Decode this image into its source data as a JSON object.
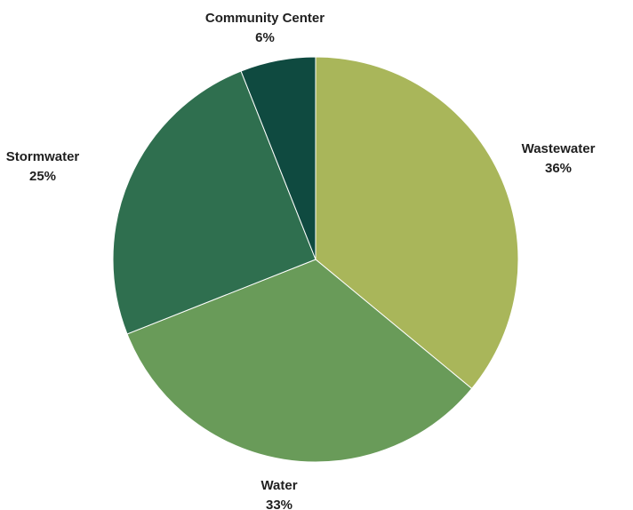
{
  "chart_data": {
    "type": "pie",
    "title": "",
    "legend": "none",
    "slices": [
      {
        "name": "Wastewater",
        "value": 36,
        "value_label": "36%",
        "color": "#a9b65a"
      },
      {
        "name": "Water",
        "value": 33,
        "value_label": "33%",
        "color": "#699b59"
      },
      {
        "name": "Stormwater",
        "value": 25,
        "value_label": "25%",
        "color": "#2f6f4f"
      },
      {
        "name": "Community Center",
        "value": 6,
        "value_label": "6%",
        "color": "#0f4a40"
      }
    ]
  }
}
